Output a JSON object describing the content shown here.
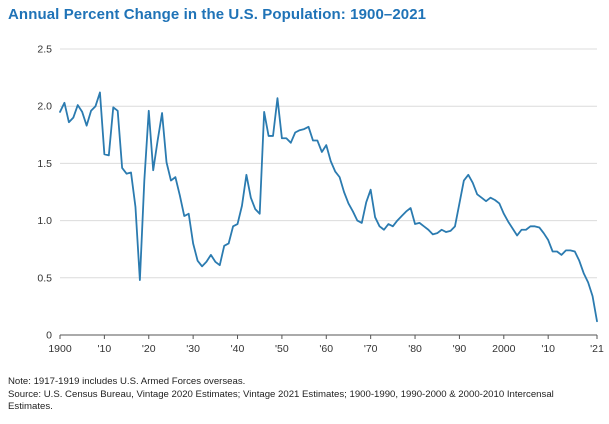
{
  "chart_data": {
    "type": "line",
    "title": "Annual Percent Change in the U.S. Population: 1900–2021",
    "xlabel": "",
    "ylabel": "",
    "xlim": [
      1900,
      2021
    ],
    "ylim": [
      0,
      2.5
    ],
    "yticks": [
      0,
      0.5,
      1.0,
      1.5,
      2.0,
      2.5
    ],
    "ytick_labels": [
      "0",
      "0.5",
      "1.0",
      "1.5",
      "2.0",
      "2.5"
    ],
    "xticks": [
      1900,
      1910,
      1920,
      1930,
      1940,
      1950,
      1960,
      1970,
      1980,
      1990,
      2000,
      2010,
      2021
    ],
    "xtick_labels": [
      "1900",
      "'10",
      "'20",
      "'30",
      "'40",
      "'50",
      "'60",
      "'70",
      "'80",
      "'90",
      "2000",
      "'10",
      "'21"
    ],
    "color": "#2b7bb0",
    "series": [
      {
        "name": "Annual percent change",
        "x": [
          1900,
          1901,
          1902,
          1903,
          1904,
          1905,
          1906,
          1907,
          1908,
          1909,
          1910,
          1911,
          1912,
          1913,
          1914,
          1915,
          1916,
          1917,
          1918,
          1919,
          1920,
          1921,
          1922,
          1923,
          1924,
          1925,
          1926,
          1927,
          1928,
          1929,
          1930,
          1931,
          1932,
          1933,
          1934,
          1935,
          1936,
          1937,
          1938,
          1939,
          1940,
          1941,
          1942,
          1943,
          1944,
          1945,
          1946,
          1947,
          1948,
          1949,
          1950,
          1951,
          1952,
          1953,
          1954,
          1955,
          1956,
          1957,
          1958,
          1959,
          1960,
          1961,
          1962,
          1963,
          1964,
          1965,
          1966,
          1967,
          1968,
          1969,
          1970,
          1971,
          1972,
          1973,
          1974,
          1975,
          1976,
          1977,
          1978,
          1979,
          1980,
          1981,
          1982,
          1983,
          1984,
          1985,
          1986,
          1987,
          1988,
          1989,
          1990,
          1991,
          1992,
          1993,
          1994,
          1995,
          1996,
          1997,
          1998,
          1999,
          2000,
          2001,
          2002,
          2003,
          2004,
          2005,
          2006,
          2007,
          2008,
          2009,
          2010,
          2011,
          2012,
          2013,
          2014,
          2015,
          2016,
          2017,
          2018,
          2019,
          2020,
          2021
        ],
        "values": [
          1.95,
          2.03,
          1.86,
          1.9,
          2.01,
          1.95,
          1.83,
          1.96,
          2.0,
          2.12,
          1.58,
          1.57,
          1.99,
          1.96,
          1.46,
          1.41,
          1.42,
          1.12,
          0.48,
          1.35,
          1.96,
          1.44,
          1.7,
          1.94,
          1.51,
          1.35,
          1.38,
          1.22,
          1.04,
          1.06,
          0.8,
          0.65,
          0.6,
          0.64,
          0.7,
          0.64,
          0.61,
          0.78,
          0.8,
          0.95,
          0.97,
          1.13,
          1.4,
          1.2,
          1.1,
          1.06,
          1.95,
          1.74,
          1.74,
          2.07,
          1.72,
          1.72,
          1.68,
          1.77,
          1.79,
          1.8,
          1.82,
          1.7,
          1.7,
          1.6,
          1.66,
          1.52,
          1.43,
          1.38,
          1.25,
          1.15,
          1.08,
          1.0,
          0.98,
          1.16,
          1.27,
          1.03,
          0.95,
          0.92,
          0.97,
          0.95,
          1.0,
          1.04,
          1.08,
          1.11,
          0.97,
          0.98,
          0.95,
          0.92,
          0.88,
          0.89,
          0.92,
          0.9,
          0.91,
          0.95,
          1.15,
          1.35,
          1.4,
          1.33,
          1.23,
          1.2,
          1.17,
          1.2,
          1.18,
          1.15,
          1.06,
          0.99,
          0.93,
          0.87,
          0.92,
          0.92,
          0.95,
          0.95,
          0.94,
          0.89,
          0.83,
          0.73,
          0.73,
          0.7,
          0.74,
          0.74,
          0.73,
          0.65,
          0.54,
          0.46,
          0.34,
          0.12
        ]
      }
    ]
  },
  "notes": {
    "note": "Note: 1917-1919 includes U.S. Armed Forces overseas.",
    "source": "Source: U.S. Census Bureau, Vintage 2020 Estimates; Vintage 2021 Estimates; 1900-1990, 1990-2000 & 2000-2010 Intercensal Estimates."
  }
}
